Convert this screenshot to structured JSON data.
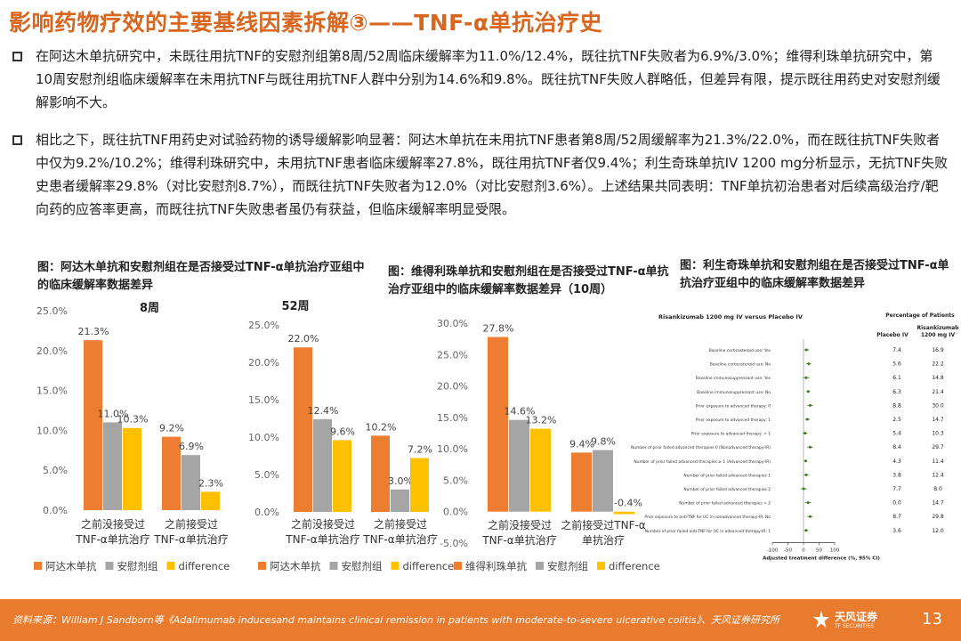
{
  "title": "影响药物疗效的主要基线因素拆解③——TNF-α单抗治疗史",
  "bullets": [
    "在阿达木单抗研究中，未既往用抗TNF的安慰剂组第8周/52周临床缓解率为11.0%/12.4%，既往抗TNF失败者为6.9%/3.0%；维得利珠单抗研究中，第10周安慰剂组临床缓解率在未用抗TNF与既往用抗TNF人群中分别为14.6%和9.8%。既往抗TNF失败人群略低，但差异有限，提示既往用药史对安慰剂缓解影响不大。",
    "相比之下，既往抗TNF用药史对试验药物的诱导缓解影响显著：阿达木单抗在未用抗TNF患者第8周/52周缓解率为21.3%/22.0%，而在既往抗TNF失败者中仅为9.2%/10.2%；维得利珠研究中，未用抗TNF患者临床缓解率27.8%，既往用抗TNF者仅9.4%；利生奇珠单抗IV 1200 mg分析显示，无抗TNF失败史患者缓解率29.8%（对比安慰剂8.7%），而既往抗TNF失败者为12.0%（对比安慰剂3.6%）。上述结果共同表明：TNF单抗初治患者对后续高级治疗/靶向药的应答率更高，而既往抗TNF失败患者虽仍有获益，但临床缓解率明显受限。"
  ],
  "chart_titles": [
    "图：阿达木单抗和安慰剂组在是否接受过TNF-α单抗治疗亚组中的临床缓解率数据差异",
    "图：维得利珠单抗和安慰剂组在是否接受过TNF-α单抗治疗亚组中的临床缓解率数据差异（10周）",
    "图：利生奇珠单抗和安慰剂组在是否接受过TNF-α单抗治疗亚组中的临床缓解率数据差异"
  ],
  "colors": {
    "orange": "#ed7d31",
    "gray": "#a5a5a5",
    "yellow": "#ffc000",
    "title": "#d9661f",
    "footer": "#e97b2f"
  },
  "chart_data": [
    {
      "type": "bar",
      "title": "8周",
      "categories": [
        "之前没接受过TNF-α单抗治疗",
        "之前接受过TNF-α单抗治疗"
      ],
      "category_lines": [
        [
          "之前没接受过",
          "TNF-α单抗治疗"
        ],
        [
          "之前接受过",
          "TNF-α单抗治疗"
        ]
      ],
      "series": [
        {
          "name": "阿达木单抗",
          "values": [
            21.3,
            9.2
          ],
          "labels": [
            "21.3%",
            "9.2%"
          ]
        },
        {
          "name": "安慰剂组",
          "values": [
            11.0,
            6.9
          ],
          "labels": [
            "11.0%",
            "6.9%"
          ]
        },
        {
          "name": "difference",
          "values": [
            10.3,
            2.3
          ],
          "labels": [
            "10.3%",
            "2.3%"
          ]
        }
      ],
      "ylim": [
        0,
        25
      ],
      "yticks": [
        "0.0%",
        "5.0%",
        "10.0%",
        "15.0%",
        "20.0%",
        "25.0%"
      ],
      "legend": "bottom"
    },
    {
      "type": "bar",
      "title": "52周",
      "categories": [
        "之前没接受过TNF-α单抗治疗",
        "之前接受过TNF-α单抗治疗"
      ],
      "category_lines": [
        [
          "之前没接受过",
          "TNF-α单抗治疗"
        ],
        [
          "之前接受过",
          "TNF-α单抗治疗"
        ]
      ],
      "series": [
        {
          "name": "阿达木单抗",
          "values": [
            22.0,
            10.2
          ],
          "labels": [
            "22.0%",
            "10.2%"
          ]
        },
        {
          "name": "安慰剂组",
          "values": [
            12.4,
            3.0
          ],
          "labels": [
            "12.4%",
            "3.0%"
          ]
        },
        {
          "name": "difference",
          "values": [
            9.6,
            7.2
          ],
          "labels": [
            "9.6%",
            "7.2%"
          ]
        }
      ],
      "ylim": [
        0,
        25
      ],
      "yticks": [
        "0.0%",
        "5.0%",
        "10.0%",
        "15.0%",
        "20.0%",
        "25.0%"
      ],
      "legend": "bottom"
    },
    {
      "type": "bar",
      "categories": [
        "之前没接受过TNF-α单抗治疗",
        "之前接受过TNF-α单抗治疗"
      ],
      "category_lines": [
        [
          "之前没接受过",
          "TNF-α单抗治疗"
        ],
        [
          "之前接受过TNF-α",
          "单抗治疗"
        ]
      ],
      "series": [
        {
          "name": "维得利珠单抗",
          "values": [
            27.8,
            9.4
          ],
          "labels": [
            "27.8%",
            "9.4%"
          ]
        },
        {
          "name": "安慰剂组",
          "values": [
            14.6,
            9.8
          ],
          "labels": [
            "14.6%",
            "9.8%"
          ]
        },
        {
          "name": "difference",
          "values": [
            13.2,
            -0.4
          ],
          "labels": [
            "13.2%",
            "-0.4%"
          ]
        }
      ],
      "ylim": [
        -5,
        30
      ],
      "yticks": [
        "-5.0%",
        "0.0%",
        "5.0%",
        "10.0%",
        "15.0%",
        "20.0%",
        "25.0%",
        "30.0%"
      ],
      "legend": "bottom"
    },
    {
      "type": "scatter",
      "title": "Risankizumab 1200 mg IV versus Placebo IV",
      "col_header": "Percentage of Patients",
      "col_placebo": "Placebo IV",
      "col_risa": "Risankizumab 1200 mg IV",
      "xlabel": "Adjusted treatment difference (%, 95% CI)",
      "xticks": [
        "-100",
        "-50",
        "0",
        "50",
        "100"
      ],
      "xlim": [
        -100,
        100
      ],
      "rows": [
        {
          "label": "Baseline corticosteroid use: Yes",
          "placebo": "7.4",
          "risa": "16.9",
          "diff": 9.5,
          "lo": 2,
          "hi": 17
        },
        {
          "label": "Baseline corticosteroid use: No",
          "placebo": "5.6",
          "risa": "22.2",
          "diff": 16.6,
          "lo": 9,
          "hi": 24
        },
        {
          "label": "Baseline immunosuppressant use: Yes",
          "placebo": "6.1",
          "risa": "14.8",
          "diff": 8.7,
          "lo": -2,
          "hi": 19
        },
        {
          "label": "Baseline immunosuppressant use: No",
          "placebo": "6.3",
          "risa": "21.4",
          "diff": 15.1,
          "lo": 9,
          "hi": 21
        },
        {
          "label": "Prior exposure to advanced therapy: 0",
          "placebo": "8.8",
          "risa": "30.0",
          "diff": 21.2,
          "lo": 12,
          "hi": 30
        },
        {
          "label": "Prior exposure to advanced therapy: 1",
          "placebo": "2.5",
          "risa": "14.7",
          "diff": 12.2,
          "lo": 5,
          "hi": 20
        },
        {
          "label": "Prior exposure to advanced therapy: > 1",
          "placebo": "5.4",
          "risa": "10.3",
          "diff": 4.9,
          "lo": -2,
          "hi": 12
        },
        {
          "label": "Number of prior failed advanced therapies 0 (Nonadvanced therapy-IR)",
          "placebo": "8.4",
          "risa": "29.7",
          "diff": 21.3,
          "lo": 12,
          "hi": 30
        },
        {
          "label": "Number of prior failed advanced therapies ≥ 1 (Advanced therapy-IR)",
          "placebo": "4.3",
          "risa": "11.4",
          "diff": 7.1,
          "lo": 2,
          "hi": 12
        },
        {
          "label": "Number of prior failed advanced therapies 1",
          "placebo": "3.8",
          "risa": "12.4",
          "diff": 8.6,
          "lo": 1,
          "hi": 16
        },
        {
          "label": "Number of prior failed advanced therapies 2",
          "placebo": "7.7",
          "risa": "8.0",
          "diff": 0.3,
          "lo": -9,
          "hi": 10
        },
        {
          "label": "Number of prior failed advanced therapies > 2",
          "placebo": "0.0",
          "risa": "14.7",
          "diff": 14.7,
          "lo": 5,
          "hi": 24
        },
        {
          "label": "Prior exposure to anti-TNF for UC in nonadvanced therapy-IR: No",
          "placebo": "8.7",
          "risa": "29.8",
          "diff": 21.1,
          "lo": 12,
          "hi": 30
        },
        {
          "label": "Number of prior failed anti-TNF for UC in advanced therapy-IR: 1",
          "placebo": "3.6",
          "risa": "12.0",
          "diff": 8.4,
          "lo": 2,
          "hi": 15
        }
      ]
    }
  ],
  "footer": {
    "source": "资料来源：William J Sandborn等《Adalimumab inducesand maintains clinical remission in patients with moderate-to-severe ulcerative colitis》、天风证券研究所",
    "logo_text": "天风证券",
    "logo_sub": "TF SECURITIES",
    "page": "13"
  }
}
